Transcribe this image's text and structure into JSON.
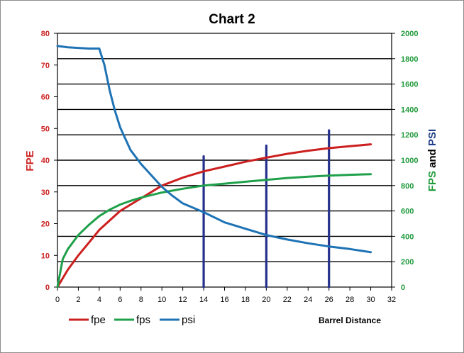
{
  "chart_data": {
    "type": "line",
    "title": "Chart 2",
    "xlabel": "Barrel Distance",
    "ylabel_left": "FPE",
    "ylabel_right_parts": [
      {
        "text": "FPS",
        "color": "#1f9a3a"
      },
      {
        "text": " and ",
        "color": "#000000"
      },
      {
        "text": "PSI",
        "color": "#1f3d8a"
      }
    ],
    "xlim": [
      0,
      32
    ],
    "ylim_left": [
      0,
      80
    ],
    "ylim_right": [
      0,
      2000
    ],
    "x_ticks": [
      "0",
      "2",
      "4",
      "6",
      "8",
      "10",
      "12",
      "14",
      "16",
      "18",
      "20",
      "22",
      "24",
      "26",
      "28",
      "30",
      "32"
    ],
    "y_left_ticks": [
      "0",
      "10",
      "20",
      "30",
      "40",
      "50",
      "60",
      "70",
      "80"
    ],
    "y_right_ticks": [
      "0",
      "200",
      "400",
      "600",
      "800",
      "1000",
      "1200",
      "1400",
      "1600",
      "1800",
      "2000"
    ],
    "gridlines_right": [
      200,
      400,
      600,
      800,
      1000,
      1200,
      1400,
      1600,
      1800
    ],
    "series": [
      {
        "name": "fpe",
        "axis": "left",
        "color": "#cc1f1f",
        "x": [
          0,
          1,
          2,
          3,
          4,
          5,
          6,
          7,
          8,
          9,
          10,
          12,
          14,
          16,
          18,
          20,
          22,
          24,
          26,
          28,
          30
        ],
        "y": [
          0,
          5.5,
          10,
          14,
          18,
          21,
          24,
          26,
          28,
          30,
          32,
          34.5,
          36.5,
          38,
          39.5,
          40.8,
          42,
          43,
          43.8,
          44.4,
          45
        ]
      },
      {
        "name": "fps",
        "axis": "right",
        "color": "#1fa04a",
        "x": [
          0,
          0.5,
          1,
          2,
          3,
          4,
          5,
          6,
          7,
          8,
          9,
          10,
          12,
          14,
          16,
          18,
          20,
          22,
          24,
          26,
          28,
          30
        ],
        "y": [
          0,
          220,
          300,
          410,
          490,
          560,
          610,
          650,
          680,
          705,
          725,
          745,
          775,
          800,
          815,
          830,
          845,
          860,
          870,
          878,
          885,
          890
        ]
      },
      {
        "name": "psi",
        "axis": "right",
        "color": "#1e73b5",
        "x": [
          0,
          1,
          2,
          3,
          4,
          4.5,
          5,
          5.5,
          6,
          7,
          8,
          9,
          10,
          11,
          12,
          14,
          16,
          18,
          20,
          22,
          24,
          26,
          28,
          30
        ],
        "y": [
          1900,
          1890,
          1885,
          1880,
          1880,
          1750,
          1550,
          1390,
          1260,
          1080,
          970,
          880,
          790,
          720,
          660,
          590,
          510,
          460,
          410,
          375,
          345,
          320,
          300,
          275
        ]
      }
    ],
    "markers": [
      {
        "x": 14,
        "top": 1030
      },
      {
        "x": 20,
        "top": 1115
      },
      {
        "x": 26,
        "top": 1235
      }
    ],
    "legend": {
      "placement": "bottom-left",
      "entries": [
        "fpe",
        "fps",
        "psi"
      ]
    }
  }
}
